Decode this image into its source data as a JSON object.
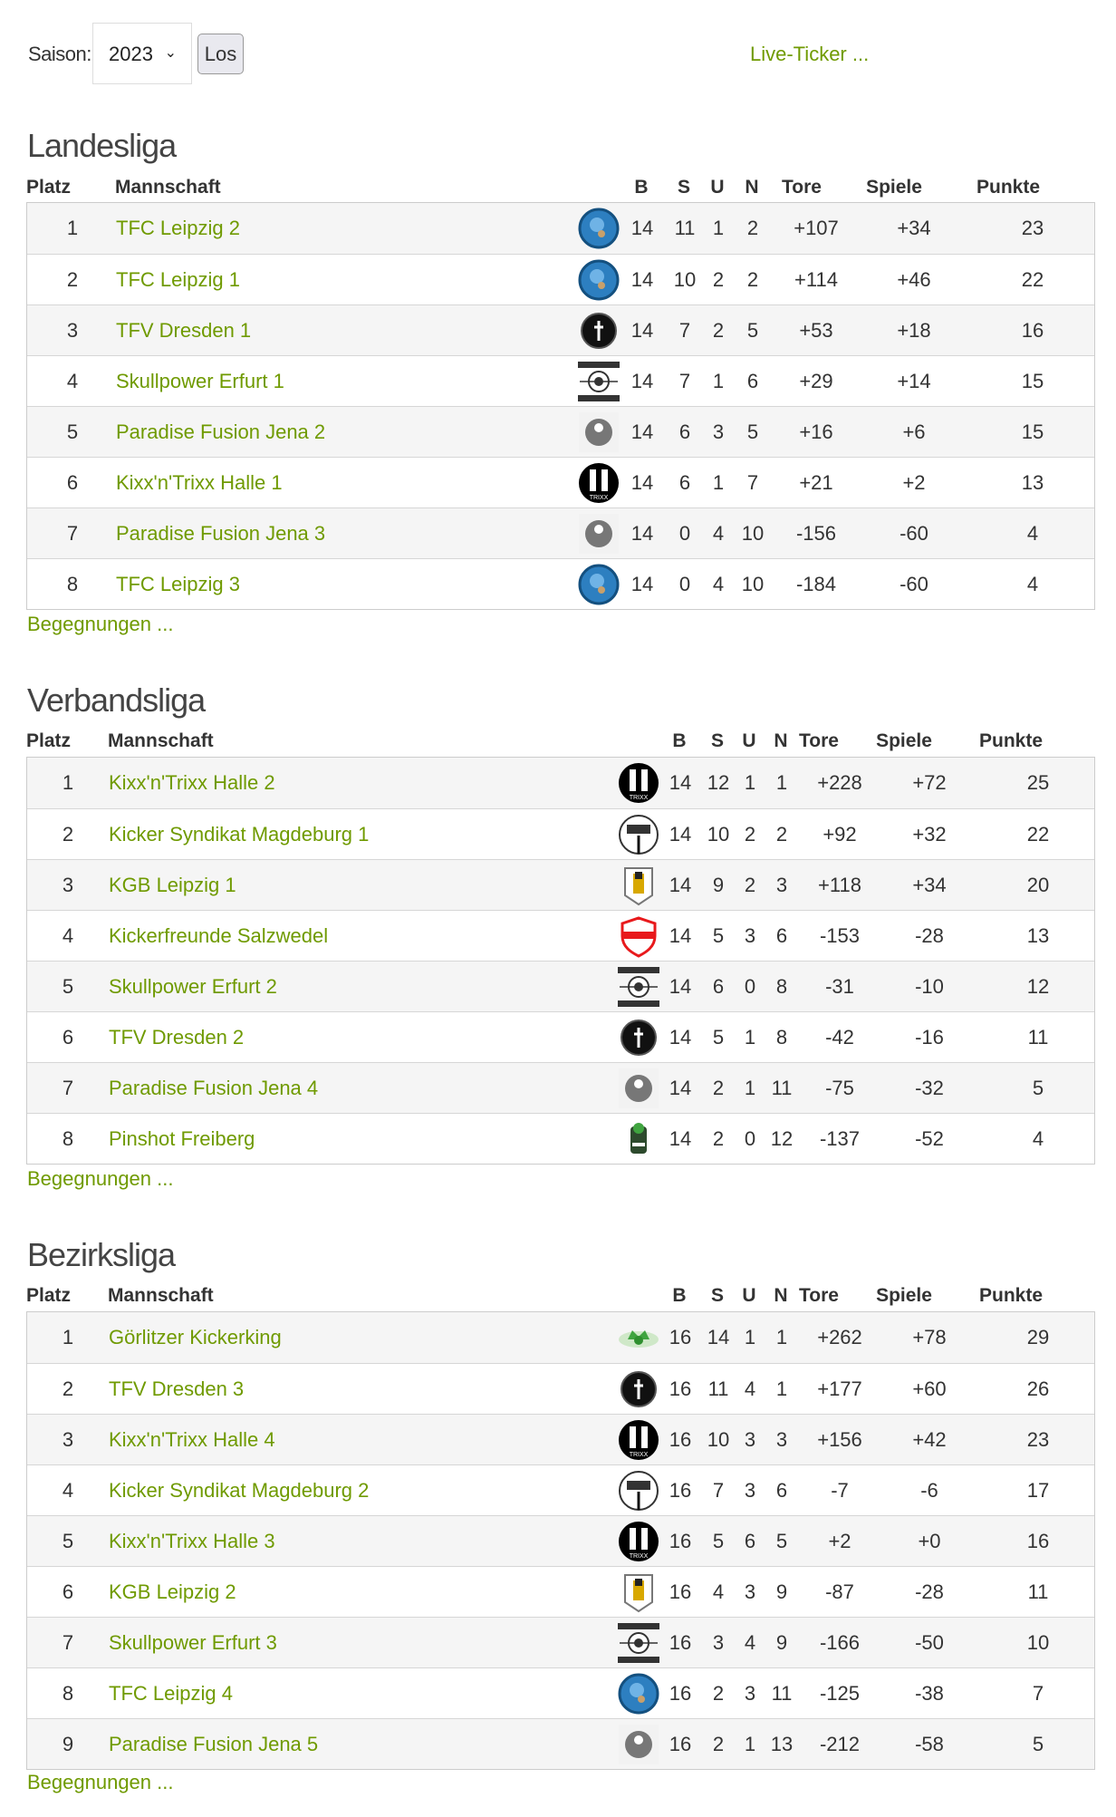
{
  "toolbar": {
    "season_label": "Saison:",
    "season_value": "2023",
    "go_label": "Los",
    "live_ticker": "Live-Ticker ..."
  },
  "columns": {
    "platz": "Platz",
    "mannschaft": "Mannschaft",
    "b": "B",
    "s": "S",
    "u": "U",
    "n": "N",
    "tore": "Tore",
    "spiele": "Spiele",
    "punkte": "Punkte"
  },
  "colors": {
    "link": "#6f9a00",
    "row_alt": "#f5f5f5"
  },
  "leagues": [
    {
      "title": "Landesliga",
      "more": "Begegnungen ...",
      "rows": [
        [
          "1",
          "TFC Leipzig 2",
          "tfc",
          "14",
          "11",
          "1",
          "2",
          "+107",
          "+34",
          "23"
        ],
        [
          "2",
          "TFC Leipzig 1",
          "tfc",
          "14",
          "10",
          "2",
          "2",
          "+114",
          "+46",
          "22"
        ],
        [
          "3",
          "TFV Dresden 1",
          "tfv",
          "14",
          "7",
          "2",
          "5",
          "+53",
          "+18",
          "16"
        ],
        [
          "4",
          "Skullpower Erfurt 1",
          "skull",
          "14",
          "7",
          "1",
          "6",
          "+29",
          "+14",
          "15"
        ],
        [
          "5",
          "Paradise Fusion Jena 2",
          "paradise",
          "14",
          "6",
          "3",
          "5",
          "+16",
          "+6",
          "15"
        ],
        [
          "6",
          "Kixx'n'Trixx Halle 1",
          "kixx",
          "14",
          "6",
          "1",
          "7",
          "+21",
          "+2",
          "13"
        ],
        [
          "7",
          "Paradise Fusion Jena 3",
          "paradise",
          "14",
          "0",
          "4",
          "10",
          "-156",
          "-60",
          "4"
        ],
        [
          "8",
          "TFC Leipzig 3",
          "tfc",
          "14",
          "0",
          "4",
          "10",
          "-184",
          "-60",
          "4"
        ]
      ]
    },
    {
      "title": "Verbandsliga",
      "more": "Begegnungen ...",
      "rows": [
        [
          "1",
          "Kixx'n'Trixx Halle 2",
          "kixx",
          "14",
          "12",
          "1",
          "1",
          "+228",
          "+72",
          "25"
        ],
        [
          "2",
          "Kicker Syndikat Magdeburg 1",
          "kicker",
          "14",
          "10",
          "2",
          "2",
          "+92",
          "+32",
          "22"
        ],
        [
          "3",
          "KGB Leipzig 1",
          "kgb",
          "14",
          "9",
          "2",
          "3",
          "+118",
          "+34",
          "20"
        ],
        [
          "4",
          "Kickerfreunde Salzwedel",
          "salzwedel",
          "14",
          "5",
          "3",
          "6",
          "-153",
          "-28",
          "13"
        ],
        [
          "5",
          "Skullpower Erfurt 2",
          "skull",
          "14",
          "6",
          "0",
          "8",
          "-31",
          "-10",
          "12"
        ],
        [
          "6",
          "TFV Dresden 2",
          "tfv",
          "14",
          "5",
          "1",
          "8",
          "-42",
          "-16",
          "11"
        ],
        [
          "7",
          "Paradise Fusion Jena 4",
          "paradise",
          "14",
          "2",
          "1",
          "11",
          "-75",
          "-32",
          "5"
        ],
        [
          "8",
          "Pinshot Freiberg",
          "pinshot",
          "14",
          "2",
          "0",
          "12",
          "-137",
          "-52",
          "4"
        ]
      ]
    },
    {
      "title": "Bezirksliga",
      "more": "Begegnungen ...",
      "rows": [
        [
          "1",
          "Görlitzer Kickerking",
          "goerlitz",
          "16",
          "14",
          "1",
          "1",
          "+262",
          "+78",
          "29"
        ],
        [
          "2",
          "TFV Dresden 3",
          "tfv",
          "16",
          "11",
          "4",
          "1",
          "+177",
          "+60",
          "26"
        ],
        [
          "3",
          "Kixx'n'Trixx Halle 4",
          "kixx",
          "16",
          "10",
          "3",
          "3",
          "+156",
          "+42",
          "23"
        ],
        [
          "4",
          "Kicker Syndikat Magdeburg 2",
          "kicker",
          "16",
          "7",
          "3",
          "6",
          "-7",
          "-6",
          "17"
        ],
        [
          "5",
          "Kixx'n'Trixx Halle 3",
          "kixx",
          "16",
          "5",
          "6",
          "5",
          "+2",
          "+0",
          "16"
        ],
        [
          "6",
          "KGB Leipzig 2",
          "kgb",
          "16",
          "4",
          "3",
          "9",
          "-87",
          "-28",
          "11"
        ],
        [
          "7",
          "Skullpower Erfurt 3",
          "skull",
          "16",
          "3",
          "4",
          "9",
          "-166",
          "-50",
          "10"
        ],
        [
          "8",
          "TFC Leipzig 4",
          "tfc",
          "16",
          "2",
          "3",
          "11",
          "-125",
          "-38",
          "7"
        ],
        [
          "9",
          "Paradise Fusion Jena 5",
          "paradise",
          "16",
          "2",
          "1",
          "13",
          "-212",
          "-58",
          "5"
        ]
      ]
    }
  ]
}
